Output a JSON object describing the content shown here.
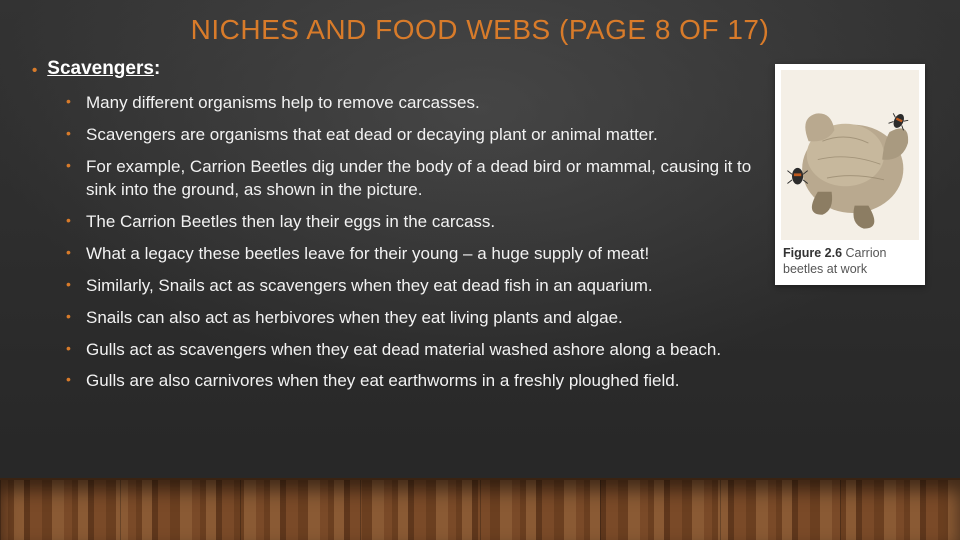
{
  "colors": {
    "title": "#d87b2a",
    "bullet_accent": "#d87b2a",
    "body_text": "#f2f2f2",
    "slide_bg_top": "#333333",
    "slide_bg_bottom": "#262626",
    "floor_tones": [
      "#7a4a28",
      "#6b3f20",
      "#8a5a34",
      "#5f371c"
    ],
    "figure_card_bg": "#ffffff",
    "figure_caption_text": "#555555"
  },
  "typography": {
    "title_fontsize": 28,
    "heading_fontsize": 19,
    "body_fontsize": 17,
    "caption_fontsize": 12.5,
    "font_family": "Segoe UI / Trebuchet MS"
  },
  "title": "NICHES AND FOOD WEBS (PAGE 8 OF 17)",
  "heading": {
    "label": "Scavengers",
    "suffix": ":"
  },
  "bullets": [
    "Many different organisms help to remove carcasses.",
    "Scavengers are organisms that eat dead or decaying plant or animal matter.",
    "For example, Carrion Beetles dig under the body of a dead bird or mammal, causing it to sink into the ground, as shown in the picture.",
    "The Carrion Beetles then lay their eggs in the carcass.",
    "What a legacy these beetles leave for their young – a huge supply of meat!",
    "Similarly, Snails act as scavengers when they eat dead fish in an aquarium.",
    "Snails can also act as herbivores when they eat living plants and algae.",
    "Gulls act as scavengers when they eat dead material washed ashore along a beach.",
    "Gulls are also carnivores when they eat earthworms in a freshly ploughed field."
  ],
  "figure": {
    "label_bold": "Figure 2.6",
    "label_rest": " Carrion beetles at work",
    "illustration": {
      "subject": "dead-small-mammal-with-beetles",
      "background": "#f4efe6",
      "fur_color": "#b9a98f",
      "fur_shadow": "#8c7d63",
      "beetle_body": "#2b2b2b",
      "beetle_marks": "#c05a1f"
    }
  }
}
